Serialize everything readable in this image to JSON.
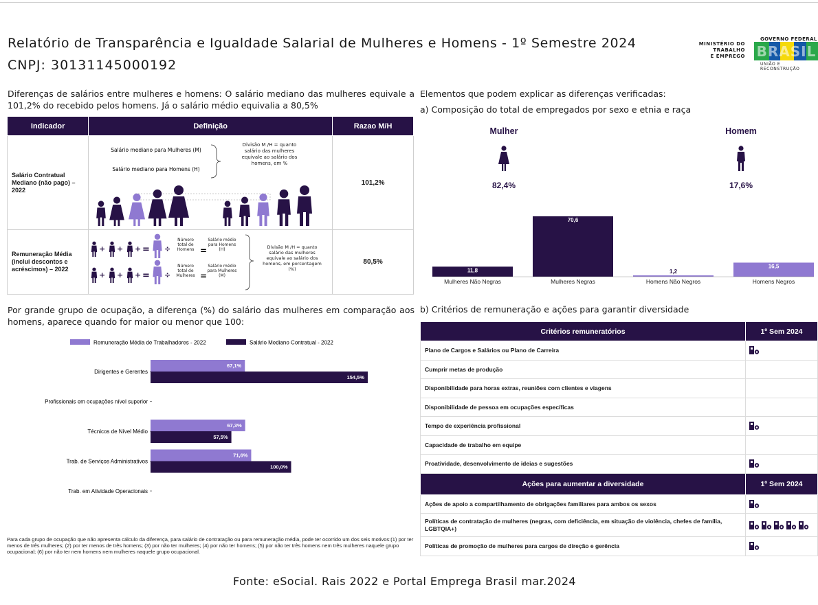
{
  "header": {
    "title": "Relatório de Transparência e Igualdade Salarial de Mulheres e Homens - 1º Semestre 2024",
    "cnpj": "CNPJ: 30131145000192",
    "ministry": [
      "MINISTÉRIO DO",
      "TRABALHO",
      "E EMPREGO"
    ],
    "gov_top": "GOVERNO FEDERAL",
    "gov_logo": "BRASIL",
    "gov_bottom": "UNIÃO E RECONSTRUÇÃO"
  },
  "lead": "Diferenças de salários entre mulheres e homens: O salário mediano das mulheres equivale a 101,2% do recebido pelos homens. Já o salário médio equivalia a 80,5%",
  "indicator_table": {
    "headers": [
      "Indicador",
      "Definição",
      "Razao M/H"
    ],
    "rows": [
      {
        "indicator": "Salário Contratual Mediano (não pago) – 2022",
        "ratio": "101,2%",
        "def_top": "Salário mediano para Mulheres (M)",
        "def_bottom": "Salário mediano para Homens (H)",
        "def_note": "Divisão M /H = quanto salário das mulheres equivale ao salário dos homens, em %"
      },
      {
        "indicator": "Remuneração Média (inclui descontos e acréscimos) – 2022",
        "ratio": "80,5%",
        "line1_label": "Número total de Homens",
        "line1_value": "Salário médio para Homens (H)",
        "line2_label": "Número total de Mulheres",
        "line2_value": "Salário médio para Mulheres (M)",
        "def_note": "Divisão M /H = quanto salário das mulheres equivale ao salário dos homens, em porcentagem (%)"
      }
    ]
  },
  "right_lead": "Elementos que podem explicar as diferenças verificadas:",
  "right_sub": "a) Composição do total de empregados por sexo e etnia e raça",
  "composition": {
    "women_label": "Mulher",
    "women_pct": "82,4%",
    "men_label": "Homem",
    "men_pct": "17,6%"
  },
  "occupation_text": "Por grande grupo de ocupação, a diferença (%) do salário das mulheres em comparação aos homens, aparece quando for maior ou menor que 100:",
  "criteria_title": "b) Critérios de remuneração e ações para garantir diversidade",
  "criteria": {
    "header": [
      "Critérios remuneratórios",
      "1º Sem 2024"
    ],
    "rows": [
      {
        "label": "Plano de Cargos e Salários ou Plano de Carreira",
        "marks": 1
      },
      {
        "label": "Cumprir metas de produção",
        "marks": 0
      },
      {
        "label": "Disponibilidade para horas extras, reuniões com clientes e viagens",
        "marks": 0
      },
      {
        "label": "Disponibilidade de pessoa em ocupações específicas",
        "marks": 0
      },
      {
        "label": "Tempo de experiência profissional",
        "marks": 1
      },
      {
        "label": "Capacidade de trabalho em equipe",
        "marks": 0
      },
      {
        "label": "Proatividade, desenvolvimento de ideias e sugestões",
        "marks": 1
      }
    ],
    "header2": [
      "Ações para aumentar a diversidade",
      "1º Sem 2024"
    ],
    "rows2": [
      {
        "label": "Ações de apoio a compartilhamento de obrigações familiares para ambos os sexos",
        "marks": 1
      },
      {
        "label": "Políticas de contratação de mulheres (negras, com deficiência, em situação de violência, chefes de família, LGBTQIA+)",
        "marks": 5
      },
      {
        "label": "Políticas de promoção de mulheres para cargos de direção e gerência",
        "marks": 1
      }
    ]
  },
  "footnote": "Para cada grupo de ocupação que não apresenta cálculo da diferença, para salário de contratação ou para remuneração média, pode ter ocorrido um dos seis motivos:(1) por ter menos de três mulheres; (2) por ter menos de três homens; (3) por não ter mulheres; (4) por não ter homens; (5) por não ter três homens nem três mulheres naquele grupo ocupacional; (6) por não ter nem homens nem mulheres naquele grupo ocupacional.",
  "source": "Fonte: eSocial. Rais 2022 e Portal Emprega Brasil mar.2024",
  "colors": {
    "dark": "#271246",
    "light": "#8f79d1",
    "blue": "#1559a8",
    "yellow": "#f5d90a",
    "green": "#2aa84a"
  },
  "chart_data": [
    {
      "type": "bar",
      "title": "",
      "categories": [
        "Mulheres Não Negras",
        "Mulheres Negras",
        "Homens Não Negros",
        "Homens Negros"
      ],
      "values": [
        11.8,
        70.6,
        1.2,
        16.5
      ],
      "value_labels": [
        "11,8",
        "70,6",
        "1,2",
        "16,5"
      ],
      "colors": [
        "#271246",
        "#271246",
        "#8f79d1",
        "#8f79d1"
      ],
      "ylim": [
        0,
        70.6
      ],
      "xlabel": "",
      "ylabel": ""
    },
    {
      "type": "bar",
      "orientation": "horizontal",
      "title": "",
      "categories": [
        "Dirigentes e Gerentes",
        "Profissionais em ocupações nível superior",
        "Técnicos de Nível Médio",
        "Trab. de Serviços Administrativos",
        "Trab. em Atividade Operacionais"
      ],
      "series": [
        {
          "name": "Remuneração Média de Trabalhadores - 2022",
          "values": [
            67.1,
            null,
            67.3,
            71.6,
            null
          ],
          "labels": [
            "67,1%",
            "",
            "67,3%",
            "71,6%",
            ""
          ],
          "color": "#8f79d1"
        },
        {
          "name": "Salário Mediano Contratual - 2022",
          "values": [
            154.5,
            null,
            57.5,
            100.0,
            null
          ],
          "labels": [
            "154,5%",
            "",
            "57,5%",
            "100,0%",
            ""
          ],
          "color": "#271246"
        }
      ],
      "legend": "top",
      "xlim": [
        0,
        154.5
      ]
    }
  ]
}
